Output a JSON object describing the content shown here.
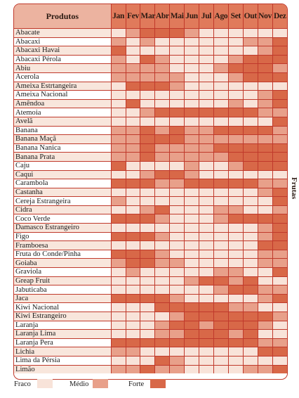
{
  "table": {
    "header": {
      "product": "Produtos",
      "months": [
        "Jan",
        "Fev",
        "Mar",
        "Abr",
        "Mai",
        "Jun",
        "Jul",
        "Ago",
        "Set",
        "Out",
        "Nov",
        "Dez"
      ]
    },
    "rows": [
      {
        "name": "Abacate",
        "levels": [
          1,
          2,
          3,
          3,
          3,
          2,
          1,
          1,
          1,
          1,
          1,
          1
        ]
      },
      {
        "name": "Abacaxi",
        "levels": [
          2,
          1,
          2,
          1,
          1,
          1,
          1,
          1,
          1,
          2,
          2,
          3
        ]
      },
      {
        "name": "Abacaxi Havai",
        "levels": [
          3,
          1,
          1,
          1,
          1,
          1,
          1,
          1,
          1,
          1,
          2,
          3
        ]
      },
      {
        "name": "Abacaxi Pérola",
        "levels": [
          2,
          1,
          3,
          2,
          1,
          1,
          1,
          1,
          2,
          3,
          3,
          3
        ]
      },
      {
        "name": "Abiu",
        "levels": [
          2,
          2,
          2,
          2,
          1,
          1,
          1,
          2,
          3,
          3,
          3,
          2
        ]
      },
      {
        "name": "Acerola",
        "levels": [
          2,
          2,
          2,
          2,
          2,
          1,
          1,
          1,
          2,
          3,
          3,
          3
        ]
      },
      {
        "name": "Ameixa Estrtangeira",
        "levels": [
          1,
          3,
          3,
          3,
          2,
          1,
          1,
          1,
          1,
          1,
          1,
          1
        ]
      },
      {
        "name": "Ameixa Nacional",
        "levels": [
          1,
          1,
          1,
          1,
          1,
          1,
          1,
          1,
          1,
          1,
          2,
          3
        ]
      },
      {
        "name": "Amêndoa",
        "levels": [
          1,
          3,
          1,
          1,
          1,
          1,
          1,
          1,
          2,
          1,
          2,
          3
        ]
      },
      {
        "name": "Atemoia",
        "levels": [
          1,
          1,
          2,
          3,
          3,
          3,
          3,
          3,
          3,
          3,
          2,
          2
        ]
      },
      {
        "name": "Avelã",
        "levels": [
          1,
          1,
          1,
          1,
          1,
          1,
          1,
          1,
          1,
          1,
          1,
          3
        ]
      },
      {
        "name": "Banana",
        "levels": [
          2,
          2,
          3,
          2,
          3,
          2,
          2,
          3,
          3,
          3,
          3,
          2
        ]
      },
      {
        "name": "Banana Maçã",
        "levels": [
          2,
          2,
          3,
          3,
          3,
          2,
          2,
          2,
          2,
          2,
          2,
          2
        ]
      },
      {
        "name": "Banana Nanica",
        "levels": [
          2,
          2,
          3,
          2,
          2,
          2,
          2,
          3,
          3,
          3,
          3,
          3
        ]
      },
      {
        "name": "Banana Prata",
        "levels": [
          2,
          2,
          3,
          2,
          2,
          2,
          2,
          2,
          3,
          3,
          3,
          3
        ]
      },
      {
        "name": "Caju",
        "levels": [
          3,
          1,
          1,
          1,
          1,
          2,
          1,
          1,
          2,
          3,
          3,
          3
        ]
      },
      {
        "name": "Caqui",
        "levels": [
          1,
          1,
          2,
          3,
          3,
          2,
          1,
          1,
          1,
          1,
          1,
          1
        ]
      },
      {
        "name": "Carambola",
        "levels": [
          3,
          3,
          3,
          2,
          2,
          3,
          3,
          3,
          3,
          3,
          2,
          2
        ]
      },
      {
        "name": "Castanha",
        "levels": [
          1,
          1,
          1,
          1,
          1,
          1,
          1,
          1,
          1,
          1,
          2,
          3
        ]
      },
      {
        "name": "Cereja Estrangeira",
        "levels": [
          2,
          1,
          1,
          1,
          1,
          1,
          1,
          1,
          1,
          1,
          1,
          3
        ]
      },
      {
        "name": "Cidra",
        "levels": [
          1,
          1,
          2,
          3,
          1,
          1,
          1,
          2,
          2,
          1,
          1,
          2
        ]
      },
      {
        "name": "Coco Verde",
        "levels": [
          3,
          3,
          3,
          2,
          1,
          1,
          1,
          2,
          3,
          3,
          3,
          3
        ]
      },
      {
        "name": "Damasco Estrangeiro",
        "levels": [
          1,
          1,
          1,
          1,
          1,
          1,
          1,
          1,
          1,
          1,
          2,
          3
        ]
      },
      {
        "name": "Figo",
        "levels": [
          3,
          3,
          3,
          2,
          1,
          1,
          1,
          1,
          1,
          1,
          2,
          3
        ]
      },
      {
        "name": "Framboesa",
        "levels": [
          1,
          1,
          1,
          1,
          1,
          1,
          1,
          1,
          1,
          1,
          3,
          3
        ]
      },
      {
        "name": "Fruta do Conde/Pinha",
        "levels": [
          3,
          3,
          3,
          2,
          1,
          1,
          1,
          1,
          1,
          1,
          2,
          2
        ]
      },
      {
        "name": "Goiaba",
        "levels": [
          2,
          3,
          3,
          2,
          2,
          1,
          1,
          1,
          1,
          1,
          2,
          2
        ]
      },
      {
        "name": "Graviola",
        "levels": [
          1,
          2,
          1,
          1,
          1,
          1,
          1,
          2,
          2,
          1,
          1,
          3
        ]
      },
      {
        "name": "Greap Fruit",
        "levels": [
          1,
          1,
          1,
          1,
          1,
          2,
          3,
          3,
          2,
          3,
          1,
          1
        ]
      },
      {
        "name": "Jabuticaba",
        "levels": [
          1,
          1,
          1,
          1,
          1,
          1,
          1,
          2,
          3,
          3,
          2,
          2
        ]
      },
      {
        "name": "Jaca",
        "levels": [
          3,
          3,
          3,
          3,
          2,
          1,
          1,
          1,
          1,
          1,
          2,
          3
        ]
      },
      {
        "name": "Kiwi Nacional",
        "levels": [
          1,
          1,
          1,
          3,
          3,
          3,
          3,
          3,
          2,
          2,
          1,
          1
        ]
      },
      {
        "name": "Kiwi Estrangeiro",
        "levels": [
          1,
          1,
          1,
          1,
          2,
          3,
          3,
          3,
          3,
          3,
          3,
          2
        ]
      },
      {
        "name": "Laranja",
        "levels": [
          1,
          1,
          1,
          2,
          3,
          3,
          2,
          3,
          3,
          3,
          2,
          1
        ]
      },
      {
        "name": "Laranja Lima",
        "levels": [
          1,
          1,
          1,
          2,
          2,
          3,
          3,
          3,
          2,
          3,
          1,
          1
        ]
      },
      {
        "name": "Laranja Pera",
        "levels": [
          3,
          3,
          3,
          3,
          3,
          3,
          3,
          3,
          3,
          3,
          2,
          2
        ]
      },
      {
        "name": "Lichia",
        "levels": [
          2,
          2,
          1,
          1,
          1,
          1,
          1,
          1,
          1,
          1,
          3,
          3
        ]
      },
      {
        "name": "Lima da Pérsia",
        "levels": [
          1,
          1,
          1,
          3,
          2,
          1,
          1,
          1,
          1,
          1,
          1,
          1
        ]
      },
      {
        "name": "Limão",
        "levels": [
          2,
          2,
          3,
          2,
          2,
          1,
          1,
          1,
          1,
          2,
          2,
          3
        ]
      }
    ]
  },
  "side_label": "Frutas",
  "legend": [
    {
      "label": "Fraco",
      "color": "#f8e3d9"
    },
    {
      "label": "Médio",
      "color": "#e8a08a"
    },
    {
      "label": "Forte",
      "color": "#d86848"
    }
  ],
  "colors": {
    "border": "#c0392b",
    "none": "#ffffff",
    "fraco": "#f8e3d9",
    "medio": "#e8a08a",
    "forte": "#d86848",
    "header_months": "#e07a5b",
    "header_product": "#ecb3a0"
  }
}
